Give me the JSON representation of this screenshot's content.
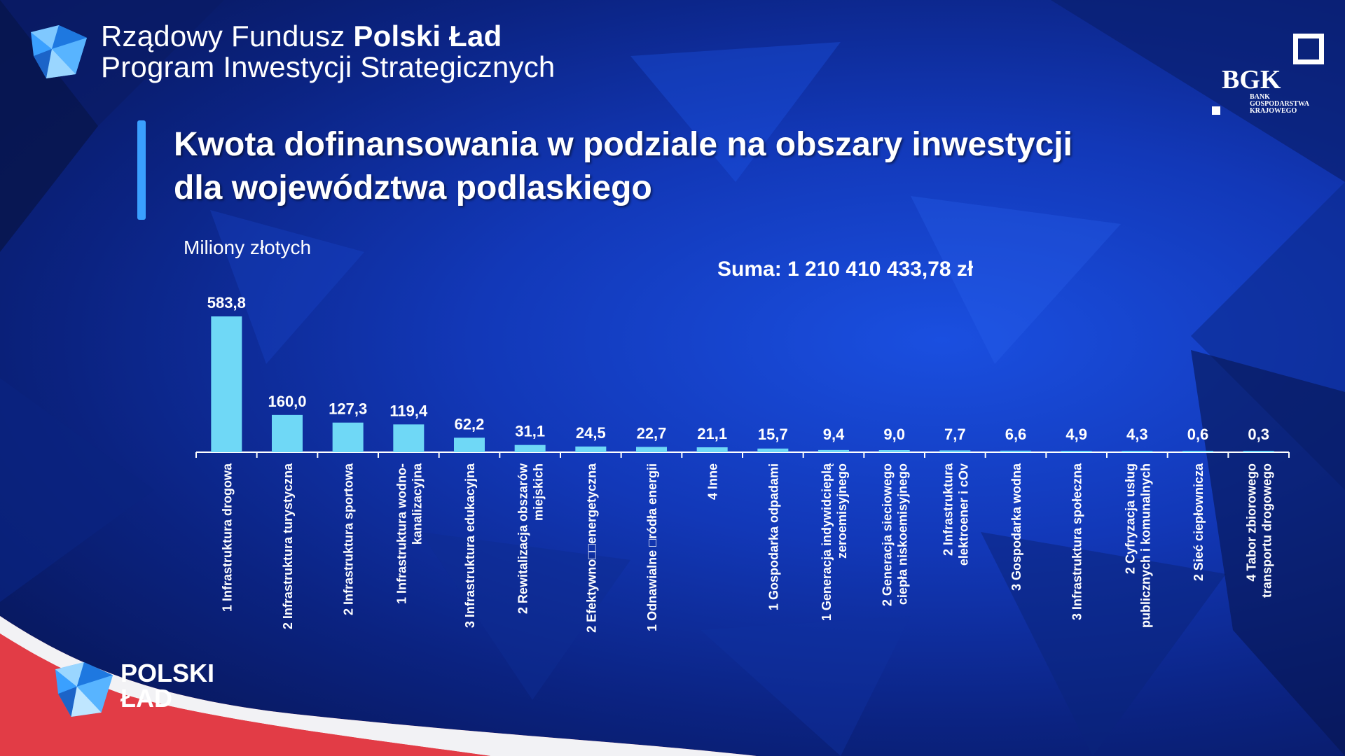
{
  "header": {
    "line1_regular": "Rządowy Fundusz ",
    "line1_bold": "Polski Ład",
    "line2": "Program Inwestycji Strategicznych"
  },
  "bgk": {
    "word": "BGK",
    "sub_line1": "BANK GOSPODARSTWA",
    "sub_line2": "KRAJOWEGO"
  },
  "logo_bottom": {
    "line1": "POLSKI",
    "line2": "ŁAD"
  },
  "colors": {
    "bar": "#6fd8f6",
    "accent": "#3aa0ff",
    "flag_red": "#e23c46"
  },
  "chart_data": {
    "type": "bar",
    "title": "Kwota dofinansowania w podziale na obszary inwestycji dla województwa podlaskiego",
    "ylabel": "Miliony złotych",
    "annotation": "Suma: 1 210 410 433,78 zł",
    "ylim": [
      0,
      583.8
    ],
    "grid": false,
    "categories": [
      [
        "1 Infrastruktura drogowa"
      ],
      [
        "2 Infrastruktura turystyczna"
      ],
      [
        "2 Infrastruktura sportowa"
      ],
      [
        "1 Infrastruktura wodno-",
        "kanalizacyjna"
      ],
      [
        "3 Infrastruktura edukacyjna"
      ],
      [
        "2 Rewitalizacja obszarów",
        "miejskich"
      ],
      [
        "2 Efektywno□□energetyczna"
      ],
      [
        "1 Odnawialne □ródła energii"
      ],
      [
        "4 Inne"
      ],
      [
        "1 Gospodarka odpadami"
      ],
      [
        "1 Generacja indywidcieplą",
        "zeroemisyjnego"
      ],
      [
        "2 Generacja sieciowego",
        "ciepła niskoemisyjnego"
      ],
      [
        "2 Infrastruktura",
        "elektroener i cOv"
      ],
      [
        "3 Gospodarka wodna"
      ],
      [
        "3 Infrastruktura społeczna"
      ],
      [
        "2 Cyfryzacja usług",
        "publicznych i komunalnych"
      ],
      [
        "2 Sieć ciepłownicza"
      ],
      [
        "4 Tabor zbiorowego",
        "transportu drogowego"
      ]
    ],
    "values": [
      583.8,
      160.0,
      127.3,
      119.4,
      62.2,
      31.1,
      24.5,
      22.7,
      21.1,
      15.7,
      9.4,
      9.0,
      7.7,
      6.6,
      4.9,
      4.3,
      0.6,
      0.3
    ],
    "value_labels": [
      "583,8",
      "160,0",
      "127,3",
      "119,4",
      "62,2",
      "31,1",
      "24,5",
      "22,7",
      "21,1",
      "15,7",
      "9,4",
      "9,0",
      "7,7",
      "6,6",
      "4,9",
      "4,3",
      "0,6",
      "0,3"
    ]
  }
}
